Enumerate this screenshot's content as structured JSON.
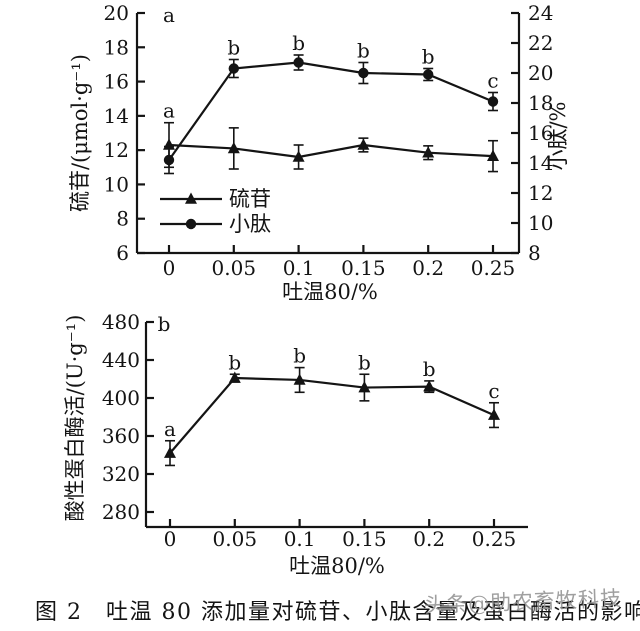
{
  "page": {
    "background": "#ffffff",
    "ink": "#141414"
  },
  "caption": {
    "text": "图 2　吐温 80 添加量对硫苷、小肽含量及蛋白酶活的影响"
  },
  "watermark": {
    "text": "头条@助农畜牧科技",
    "color": "#8f8f8f"
  },
  "chart_data": [
    {
      "type": "line",
      "id": "glucosinolate-peptide",
      "x_values": [
        0,
        0.05,
        0.1,
        0.15,
        0.2,
        0.25
      ],
      "x_tick_labels": [
        "0",
        "0.05",
        "0.1",
        "0.15",
        "0.2",
        "0.25"
      ],
      "xlabel": "吐温80/%",
      "axes": {
        "left": {
          "label": "硫苷/(μmol·g⁻¹)",
          "min": 6,
          "max": 20,
          "tick_step": 2,
          "ticks": [
            6,
            8,
            10,
            12,
            14,
            16,
            18,
            20
          ]
        },
        "right": {
          "label": "小肽/%",
          "min": 8,
          "max": 24,
          "tick_step": 2,
          "ticks": [
            8,
            10,
            12,
            14,
            16,
            18,
            20,
            22,
            24
          ]
        }
      },
      "grid": false,
      "corner_letter": "a",
      "legend": {
        "position": "inside-lower-left",
        "entries": [
          "硫苷",
          "小肽"
        ]
      },
      "series": [
        {
          "sid": "glucosinolate",
          "name": "硫苷",
          "axis": "left",
          "marker": "triangle",
          "values": [
            12.3,
            12.1,
            11.6,
            12.3,
            11.85,
            11.65
          ],
          "errors": [
            1.3,
            1.2,
            0.7,
            0.4,
            0.4,
            0.9
          ],
          "letters": [
            "a",
            "",
            "",
            "",
            "",
            ""
          ]
        },
        {
          "sid": "peptide",
          "name": "小肽",
          "axis": "right",
          "marker": "circle",
          "values": [
            14.2,
            20.3,
            20.7,
            20.0,
            19.9,
            18.1
          ],
          "errors": [
            0.9,
            0.6,
            0.5,
            0.7,
            0.4,
            0.6
          ],
          "letters": [
            "",
            "b",
            "b",
            "b",
            "b",
            "c"
          ]
        }
      ]
    },
    {
      "type": "line",
      "id": "protease-activity",
      "x_values": [
        0,
        0.05,
        0.1,
        0.15,
        0.2,
        0.25
      ],
      "x_tick_labels": [
        "0",
        "0.05",
        "0.1",
        "0.15",
        "0.2",
        "0.25"
      ],
      "xlabel": "吐温80/%",
      "axes": {
        "left": {
          "label": "酸性蛋白酶活/(U·g⁻¹)",
          "min": 280,
          "max": 480,
          "tick_step": 40,
          "ticks": [
            280,
            320,
            360,
            400,
            440,
            480
          ]
        }
      },
      "grid": false,
      "corner_letter": "b",
      "series": [
        {
          "sid": "protease",
          "name": "酸性蛋白酶活",
          "axis": "left",
          "marker": "triangle",
          "values": [
            342,
            421,
            419,
            411,
            412,
            382
          ],
          "errors": [
            13,
            4,
            13,
            14,
            6,
            13
          ],
          "letters": [
            "a",
            "b",
            "b",
            "b",
            "b",
            "c"
          ]
        }
      ]
    }
  ]
}
